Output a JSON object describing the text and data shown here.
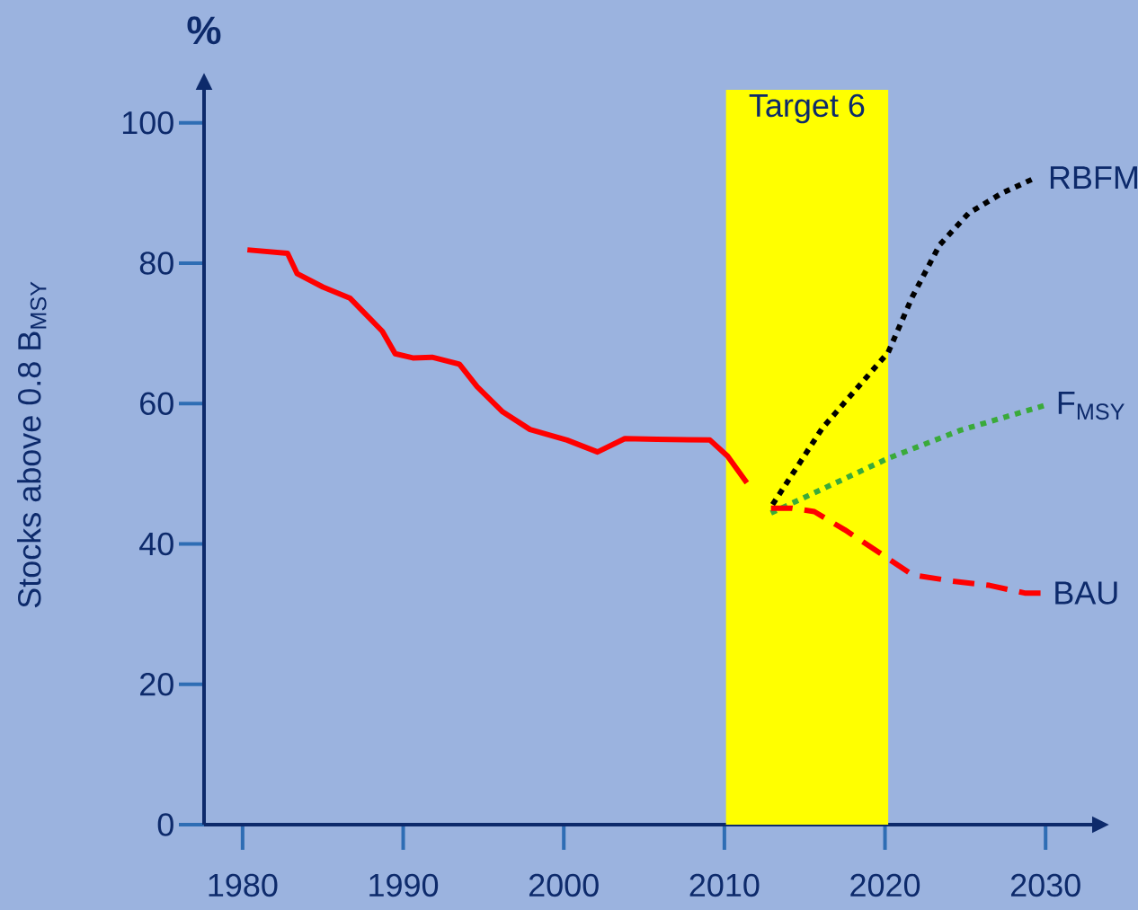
{
  "chart_data": {
    "type": "line",
    "title": "%",
    "ylabel": "Stocks above 0.8 B$_{MSY}$",
    "xlim": [
      1977.6,
      2032.9
    ],
    "ylim": [
      0,
      104.7
    ],
    "xticks": [
      1980,
      1990,
      2000,
      2010,
      2020,
      2030
    ],
    "yticks": [
      0,
      20,
      40,
      60,
      80,
      100
    ],
    "bands": [
      {
        "axis": "x",
        "from": 2010.1,
        "to": 2020.2,
        "label": "Target 6",
        "color": "#ffff00"
      }
    ],
    "series": [
      {
        "color": "#ff0000",
        "line_style": "solid",
        "x": [
          1980.3,
          1982.8,
          1983.4,
          1985.0,
          1986.7,
          1988.7,
          1989.5,
          1990.6,
          1991.8,
          1993.5,
          1994.6,
          1996.2,
          1997.9,
          2000.2,
          2002.1,
          2003.8,
          2005.8,
          2009.1,
          2010.2,
          2011.4
        ],
        "values": [
          81.9,
          81.4,
          78.5,
          76.6,
          75.0,
          70.3,
          67.1,
          66.5,
          66.6,
          65.6,
          62.4,
          58.8,
          56.3,
          54.8,
          53.1,
          55.0,
          54.9,
          54.8,
          52.5,
          48.7
        ]
      },
      {
        "name": "RBFM",
        "color": "#000000",
        "line_style": "dotted",
        "x": [
          2013.0,
          2016.1,
          2020.2,
          2021.7,
          2023.4,
          2025.2,
          2027.3,
          2029.4
        ],
        "values": [
          45.6,
          56.5,
          67.3,
          75.2,
          82.6,
          87.1,
          90.0,
          92.2
        ]
      },
      {
        "name": "F$_{MSY}$",
        "color": "#3aaa3a",
        "line_style": "dotted",
        "x": [
          2012.9,
          2020.2,
          2024.7,
          2029.9
        ],
        "values": [
          44.4,
          52.2,
          56.2,
          59.7
        ]
      },
      {
        "name": "BAU",
        "color": "#ff0000",
        "line_style": "dashed",
        "x": [
          2012.9,
          2014.2,
          2015.6,
          2017.5,
          2020.0,
          2021.7,
          2024.2,
          2026.5,
          2028.7,
          2029.7
        ],
        "values": [
          45.1,
          45.1,
          44.6,
          42.0,
          38.2,
          35.6,
          34.7,
          34.1,
          33.0,
          33.0
        ]
      }
    ]
  }
}
